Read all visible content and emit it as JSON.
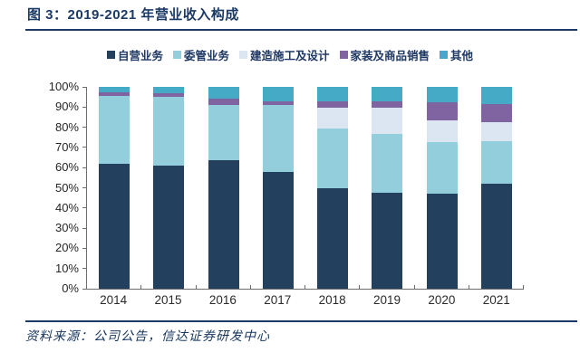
{
  "header": {
    "title": "图 3：2019-2021 年营业收入构成"
  },
  "footer": {
    "source": "资料来源：公司公告，信达证券研发中心"
  },
  "colors": {
    "accent_navy": "#1b3a66",
    "axis_gray": "#6d6d6d"
  },
  "chart_data": {
    "type": "bar",
    "stacked": true,
    "unit": "percent",
    "title": "2019-2021 年营业收入构成",
    "xlabel": "",
    "ylabel": "",
    "ylim": [
      0,
      100
    ],
    "grid": false,
    "legend_position": "top",
    "categories": [
      "2014",
      "2015",
      "2016",
      "2017",
      "2018",
      "2019",
      "2020",
      "2021"
    ],
    "y_ticks": [
      "0%",
      "10%",
      "20%",
      "30%",
      "40%",
      "50%",
      "60%",
      "70%",
      "80%",
      "90%",
      "100%"
    ],
    "series": [
      {
        "name": "自营业务",
        "color": "#24405f",
        "values": [
          62,
          61,
          63.5,
          58,
          50,
          47.5,
          47,
          52
        ]
      },
      {
        "name": "委管业务",
        "color": "#93ceDD",
        "values": [
          33.5,
          34,
          27.5,
          33,
          29.5,
          29,
          25.5,
          21
        ]
      },
      {
        "name": "建造施工及设计",
        "color": "#dce6f2",
        "values": [
          0,
          0,
          0,
          0,
          10,
          13,
          11,
          9.5
        ]
      },
      {
        "name": "家装及商品销售",
        "color": "#8064a2",
        "values": [
          2,
          2,
          3,
          2,
          3.5,
          3.5,
          9,
          9
        ]
      },
      {
        "name": "其他",
        "color": "#44aac5",
        "values": [
          2.5,
          3,
          6,
          7,
          7,
          7,
          7.5,
          8.5
        ]
      }
    ]
  }
}
